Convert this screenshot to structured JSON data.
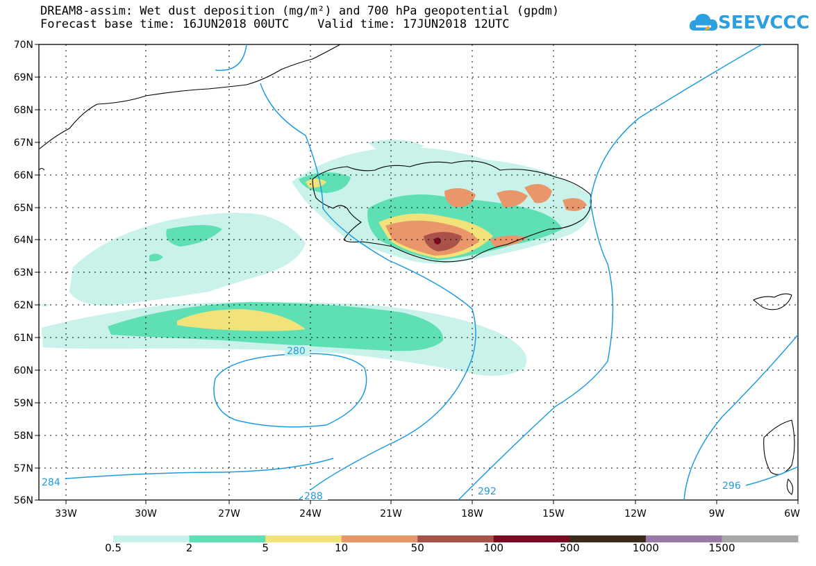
{
  "title": {
    "line1": "DREAM8-assim: Wet dust deposition (mg/m²) and 700 hPa geopotential (gpdm)",
    "line2": "Forecast base time: 16JUN2018 00UTC    Valid time: 17JUN2018 12UTC"
  },
  "logo": {
    "text": "SEEVCCC",
    "icon": "cloud-icon",
    "color": "#2b9fe0"
  },
  "map": {
    "lat_labels": [
      "70N",
      "69N",
      "68N",
      "67N",
      "66N",
      "65N",
      "64N",
      "63N",
      "62N",
      "61N",
      "60N",
      "59N",
      "58N",
      "57N",
      "56N"
    ],
    "lon_labels": [
      "33W",
      "30W",
      "27W",
      "24W",
      "21W",
      "18W",
      "15W",
      "12W",
      "9W",
      "6W"
    ],
    "contour_labels": [
      "280",
      "284",
      "288",
      "292",
      "296"
    ],
    "contour_color": "#1e9be0",
    "grid": "dotted"
  },
  "legend": {
    "labels": [
      "0.5",
      "2",
      "5",
      "10",
      "50",
      "100",
      "500",
      "1000",
      "1500"
    ],
    "colors": [
      "#c8f2ea",
      "#5fe0b4",
      "#f2e27a",
      "#e8966a",
      "#a8524a",
      "#7a0a22",
      "#3a2a1e",
      "#9a78a8",
      "#a8a8a8"
    ]
  }
}
